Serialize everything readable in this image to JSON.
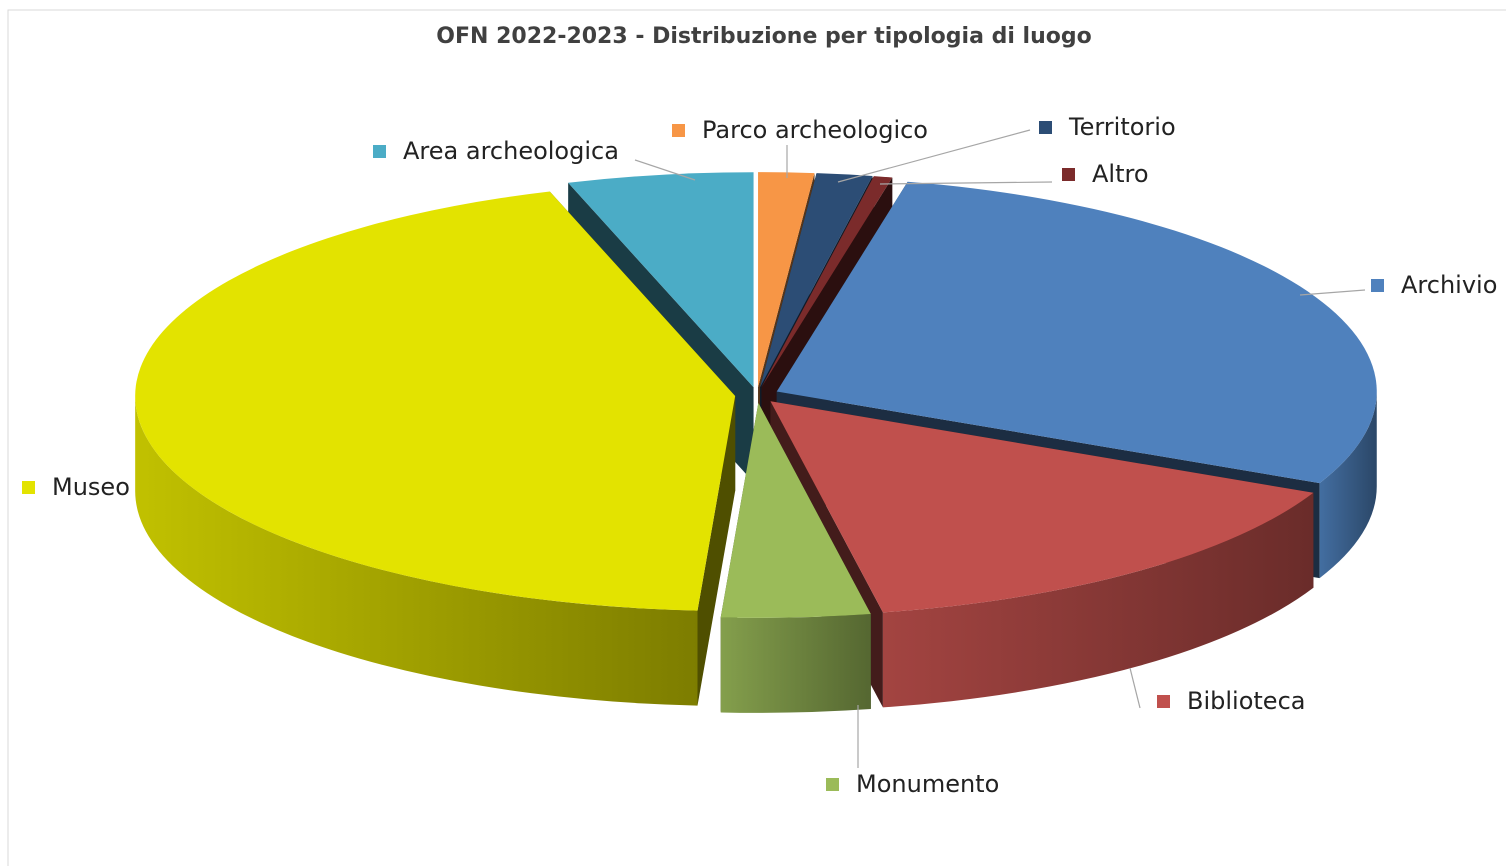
{
  "chart_data": {
    "type": "pie3d",
    "title": "OFN 2022-2023 - Distribuzione per tipologia di luogo",
    "categories": [
      "Parco archeologico",
      "Territorio",
      "Altro",
      "Archivio",
      "Biblioteca",
      "Monumento",
      "Museo",
      "Area archeologica"
    ],
    "values": [
      1.5,
      1.5,
      0.5,
      28.5,
      15,
      4,
      44,
      5
    ],
    "colors": [
      "#f79646",
      "#2c4d75",
      "#7b2b2b",
      "#4f81bd",
      "#c0504d",
      "#9bbb59",
      "#e3e300",
      "#4bacc6"
    ]
  }
}
